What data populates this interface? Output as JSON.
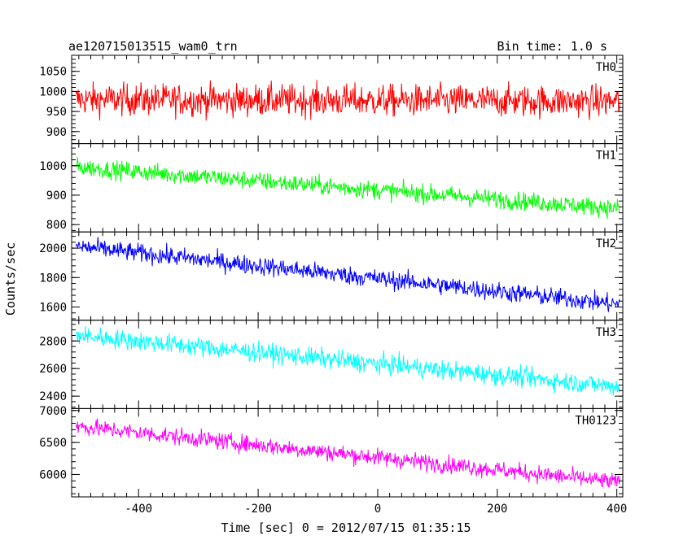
{
  "title_left": "ae120715013515_wam0_trn",
  "title_right": "Bin time: 1.0 s",
  "xlabel": "Time [sec] 0 = 2012/07/15 01:35:15",
  "ylabel": "Counts/sec",
  "chart_data": {
    "type": "line",
    "layout": "stacked-panels",
    "x_range": [
      -512,
      410
    ],
    "x_ticks": [
      -400,
      -200,
      0,
      200,
      400
    ],
    "bin_time_s": 1.0,
    "panels": [
      {
        "name": "TH0",
        "color": "#ff0000",
        "ylim": [
          870,
          1090
        ],
        "yticks": [
          900,
          950,
          1000,
          1050
        ],
        "trend": [
          {
            "x": -500,
            "y": 980
          },
          {
            "x": 400,
            "y": 975
          }
        ],
        "noise": 28
      },
      {
        "name": "TH1",
        "color": "#00ff00",
        "ylim": [
          775,
          1075
        ],
        "yticks": [
          800,
          900,
          1000
        ],
        "trend": [
          {
            "x": -500,
            "y": 995
          },
          {
            "x": 400,
            "y": 855
          }
        ],
        "noise": 22
      },
      {
        "name": "TH2",
        "color": "#0000ff",
        "ylim": [
          1510,
          2110
        ],
        "yticks": [
          1600,
          1800,
          2000
        ],
        "trend": [
          {
            "x": -500,
            "y": 2010
          },
          {
            "x": 400,
            "y": 1620
          }
        ],
        "noise": 45
      },
      {
        "name": "TH3",
        "color": "#00ffff",
        "ylim": [
          2310,
          2950
        ],
        "yticks": [
          2400,
          2600,
          2800
        ],
        "trend": [
          {
            "x": -500,
            "y": 2840
          },
          {
            "x": 400,
            "y": 2470
          }
        ],
        "noise": 50
      },
      {
        "name": "TH0123",
        "color": "#ff00ff",
        "ylim": [
          5650,
          7030
        ],
        "yticks": [
          6000,
          6500,
          7000
        ],
        "trend": [
          {
            "x": -500,
            "y": 6750
          },
          {
            "x": 400,
            "y": 5880
          }
        ],
        "noise": 95
      }
    ]
  }
}
